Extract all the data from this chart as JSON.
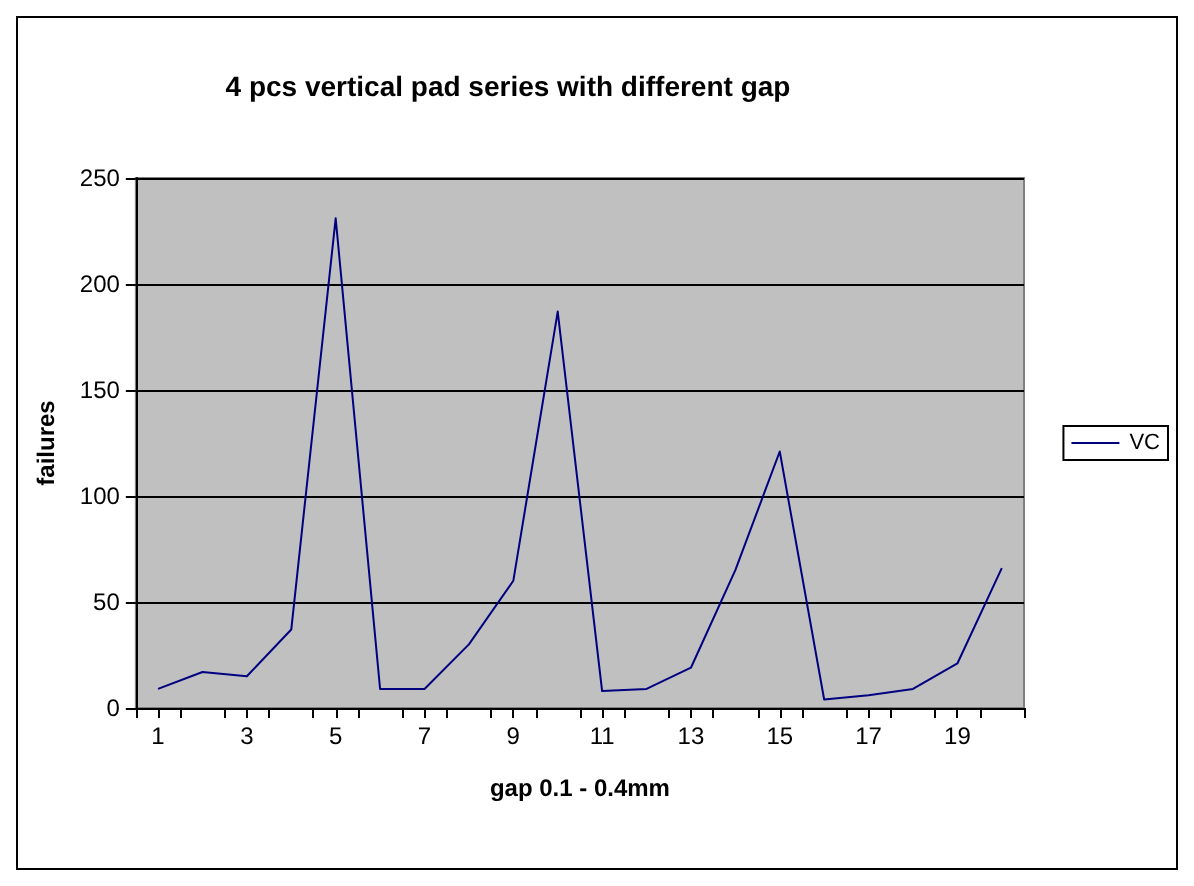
{
  "chart_data": {
    "type": "line",
    "title": "4 pcs vertical pad series with different gap",
    "xlabel": "gap 0.1 - 0.4mm",
    "ylabel": "failures",
    "x": [
      1,
      2,
      3,
      4,
      5,
      6,
      7,
      8,
      9,
      10,
      11,
      12,
      13,
      14,
      15,
      16,
      17,
      18,
      19,
      20
    ],
    "series": [
      {
        "name": "VC",
        "color": "#000080",
        "values": [
          9,
          17,
          15,
          37,
          231,
          9,
          9,
          30,
          60,
          187,
          8,
          9,
          19,
          65,
          121,
          4,
          6,
          9,
          21,
          66
        ]
      }
    ],
    "xlim": [
      0.5,
      20.5
    ],
    "xticks": [
      {
        "value": 0.5,
        "label": null
      },
      1,
      {
        "value": 1.5,
        "label": null
      },
      {
        "value": 2.5,
        "label": null
      },
      3,
      {
        "value": 3.5,
        "label": null
      },
      {
        "value": 4.5,
        "label": null
      },
      5,
      {
        "value": 5.5,
        "label": null
      },
      {
        "value": 6.5,
        "label": null
      },
      7,
      {
        "value": 7.5,
        "label": null
      },
      {
        "value": 8.5,
        "label": null
      },
      9,
      {
        "value": 9.5,
        "label": null
      },
      {
        "value": 10.5,
        "label": null
      },
      11,
      {
        "value": 11.5,
        "label": null
      },
      {
        "value": 12.5,
        "label": null
      },
      13,
      {
        "value": 13.5,
        "label": null
      },
      {
        "value": 14.5,
        "label": null
      },
      15,
      {
        "value": 15.5,
        "label": null
      },
      {
        "value": 16.5,
        "label": null
      },
      17,
      {
        "value": 17.5,
        "label": null
      },
      {
        "value": 18.5,
        "label": null
      },
      19,
      {
        "value": 19.5,
        "label": null
      },
      {
        "value": 20.5,
        "label": null
      }
    ],
    "ylim": [
      0,
      250
    ],
    "yticks": [
      0,
      50,
      100,
      150,
      200,
      250
    ],
    "grid": "y",
    "legend": "right",
    "marker": "none",
    "line_style": "solid"
  }
}
